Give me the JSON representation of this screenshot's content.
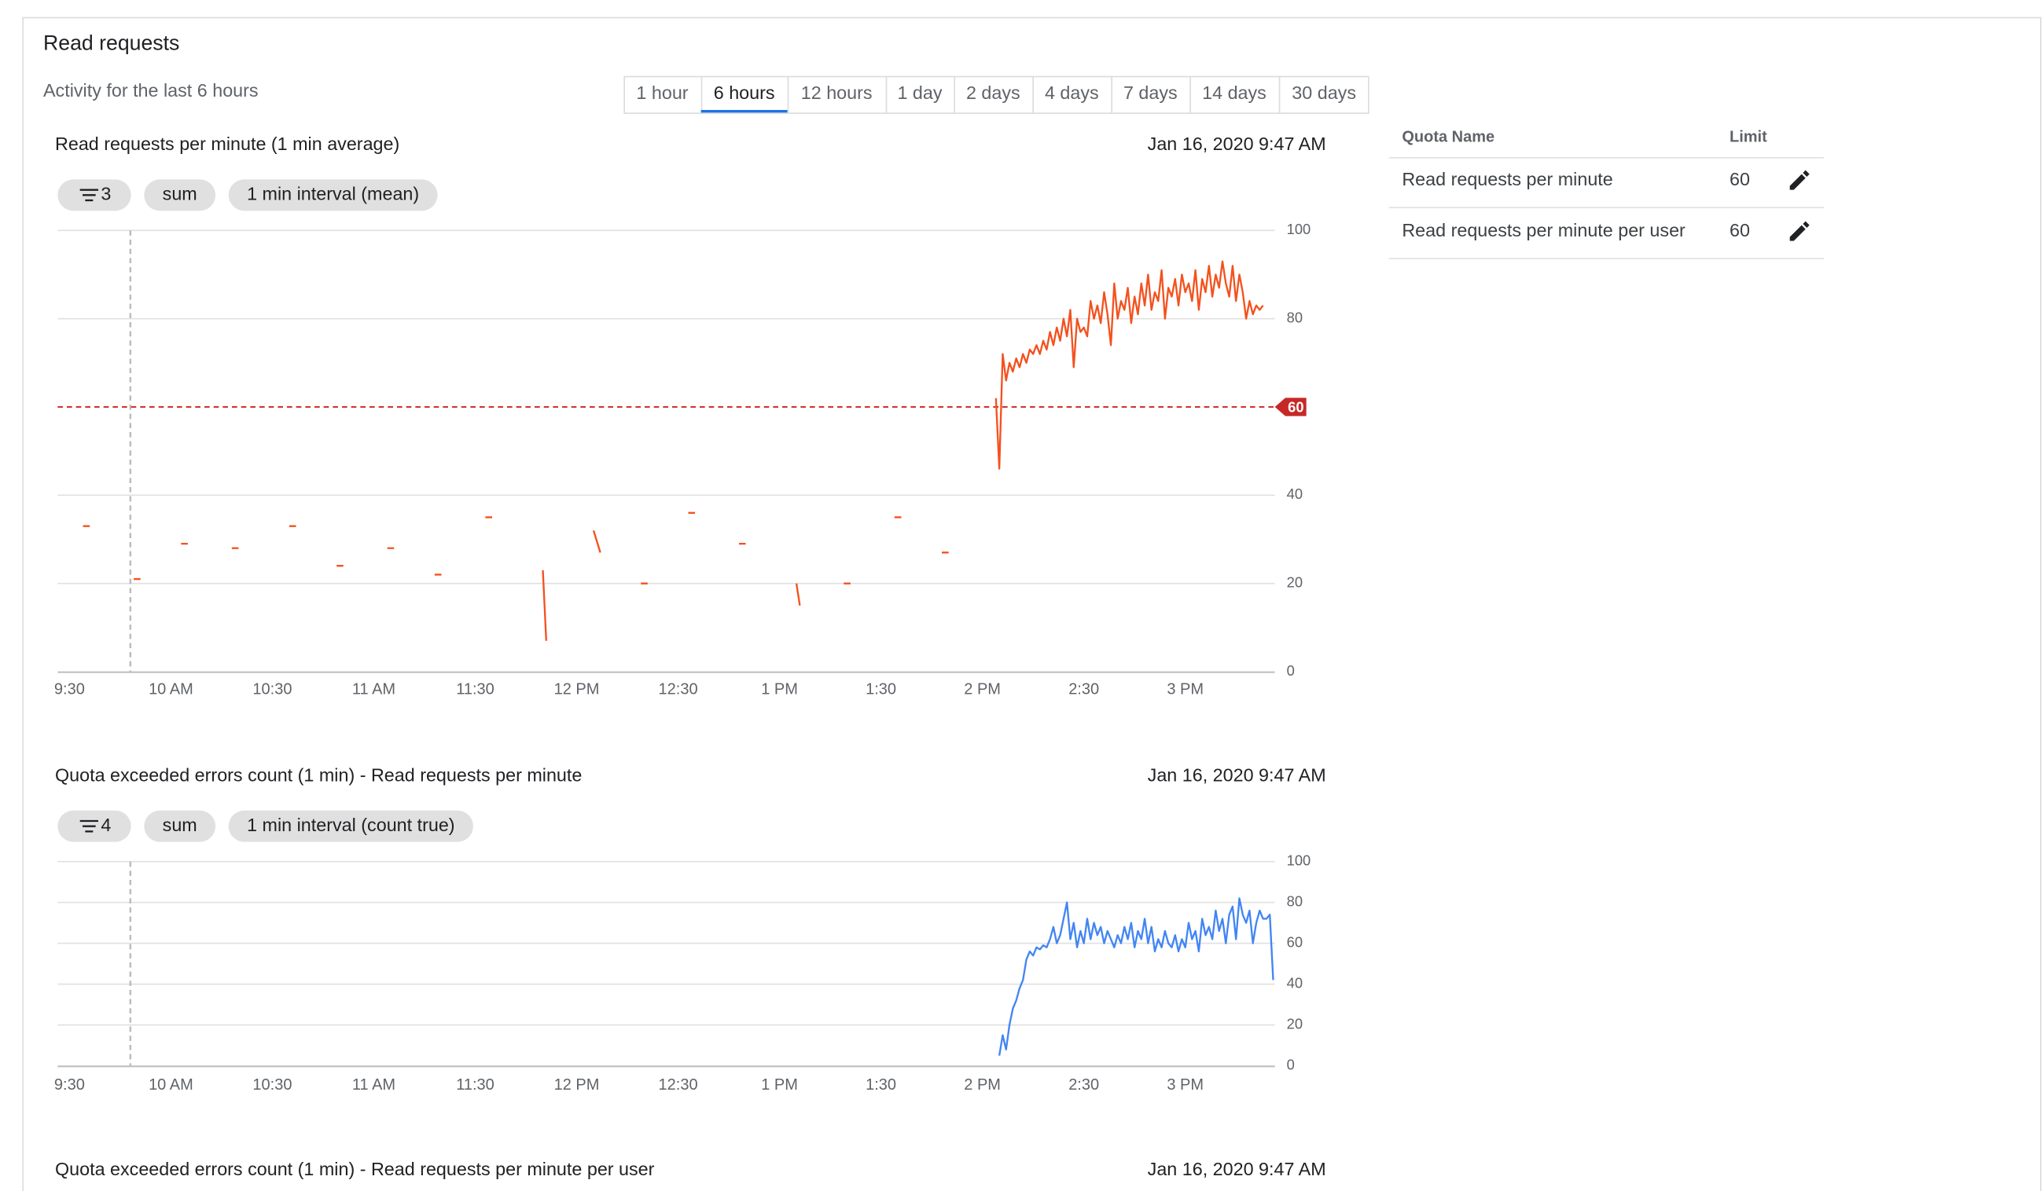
{
  "panel": {
    "title": "Read requests",
    "subtitle": "Activity for the last 6 hours",
    "tabs": [
      "1 hour",
      "6 hours",
      "12 hours",
      "1 day",
      "2 days",
      "4 days",
      "7 days",
      "14 days",
      "30 days"
    ],
    "selected_tab": 1
  },
  "chart_data": [
    {
      "type": "line",
      "title": "Read requests per minute (1 min average)",
      "timestamp": "Jan 16, 2020 9:47 AM",
      "filter_count": 3,
      "chips": [
        "sum",
        "1 min interval (mean)"
      ],
      "xlim": [
        566.5,
        926.5
      ],
      "xticks": [
        {
          "value": 570,
          "label": "9:30"
        },
        {
          "value": 600,
          "label": "10 AM"
        },
        {
          "value": 630,
          "label": "10:30"
        },
        {
          "value": 660,
          "label": "11 AM"
        },
        {
          "value": 690,
          "label": "11:30"
        },
        {
          "value": 720,
          "label": "12 PM"
        },
        {
          "value": 750,
          "label": "12:30"
        },
        {
          "value": 780,
          "label": "1 PM"
        },
        {
          "value": 810,
          "label": "1:30"
        },
        {
          "value": 840,
          "label": "2 PM"
        },
        {
          "value": 870,
          "label": "2:30"
        },
        {
          "value": 900,
          "label": "3 PM"
        }
      ],
      "ylim": [
        0,
        100
      ],
      "yticks": [
        0,
        20,
        40,
        80,
        100
      ],
      "grid": true,
      "threshold": 60,
      "series": [
        {
          "color": "#f4511e",
          "x": [
            574,
            576,
            null,
            589,
            591,
            null,
            603,
            605,
            null,
            618,
            620,
            null,
            635,
            637,
            null,
            649,
            651,
            null,
            664,
            666,
            null,
            678,
            680,
            null,
            693,
            695,
            null,
            710,
            711,
            null,
            725,
            727,
            null,
            739,
            741,
            null,
            753,
            755,
            null,
            768,
            770,
            null,
            785,
            786,
            null,
            799,
            801,
            null,
            814,
            816,
            null,
            828,
            830,
            null,
            844,
            845,
            846,
            847,
            848,
            849,
            850,
            851,
            852,
            853,
            854,
            855,
            856,
            857,
            858,
            859,
            860,
            861,
            862,
            863,
            864,
            865,
            866,
            867,
            868,
            869,
            870,
            871,
            872,
            873,
            874,
            875,
            876,
            877,
            878,
            879,
            880,
            881,
            882,
            883,
            884,
            885,
            886,
            887,
            888,
            889,
            890,
            891,
            892,
            893,
            894,
            895,
            896,
            897,
            898,
            899,
            900,
            901,
            902,
            903,
            904,
            905,
            906,
            907,
            908,
            909,
            910,
            911,
            912,
            913,
            914,
            915,
            916,
            917,
            918,
            919,
            920,
            921,
            922,
            923
          ],
          "values": [
            33,
            33,
            null,
            21,
            21,
            null,
            29,
            29,
            null,
            28,
            28,
            null,
            33,
            33,
            null,
            24,
            24,
            null,
            28,
            28,
            null,
            22,
            22,
            null,
            35,
            35,
            null,
            23,
            7,
            null,
            32,
            27,
            null,
            20,
            20,
            null,
            36,
            36,
            null,
            29,
            29,
            null,
            20,
            15,
            null,
            20,
            20,
            null,
            35,
            35,
            null,
            27,
            27,
            null,
            62,
            46,
            72,
            66,
            70,
            68,
            71,
            69,
            72,
            70,
            73,
            72,
            74,
            72,
            75,
            73,
            77,
            74,
            78,
            75,
            80,
            76,
            82,
            69,
            80,
            77,
            78,
            76,
            84,
            80,
            83,
            79,
            86,
            81,
            74,
            88,
            80,
            84,
            82,
            87,
            79,
            85,
            81,
            88,
            83,
            90,
            82,
            86,
            84,
            91,
            80,
            87,
            85,
            89,
            83,
            90,
            86,
            88,
            84,
            91,
            82,
            89,
            86,
            92,
            85,
            90,
            87,
            93,
            88,
            85,
            92,
            84,
            90,
            86,
            80,
            84,
            81,
            83,
            82,
            83
          ]
        }
      ]
    },
    {
      "type": "line",
      "title": "Quota exceeded errors count (1 min) - Read requests per minute",
      "timestamp": "Jan 16, 2020 9:47 AM",
      "filter_count": 4,
      "chips": [
        "sum",
        "1 min interval (count true)"
      ],
      "xlim": [
        566.5,
        926.5
      ],
      "xticks": [
        {
          "value": 570,
          "label": "9:30"
        },
        {
          "value": 600,
          "label": "10 AM"
        },
        {
          "value": 630,
          "label": "10:30"
        },
        {
          "value": 660,
          "label": "11 AM"
        },
        {
          "value": 690,
          "label": "11:30"
        },
        {
          "value": 720,
          "label": "12 PM"
        },
        {
          "value": 750,
          "label": "12:30"
        },
        {
          "value": 780,
          "label": "1 PM"
        },
        {
          "value": 810,
          "label": "1:30"
        },
        {
          "value": 840,
          "label": "2 PM"
        },
        {
          "value": 870,
          "label": "2:30"
        },
        {
          "value": 900,
          "label": "3 PM"
        }
      ],
      "ylim": [
        0,
        100
      ],
      "yticks": [
        0,
        20,
        40,
        60,
        80,
        100
      ],
      "grid": true,
      "series": [
        {
          "color": "#4285f4",
          "x": [
            845,
            846,
            847,
            848,
            849,
            850,
            851,
            852,
            853,
            854,
            855,
            856,
            857,
            858,
            859,
            860,
            861,
            862,
            863,
            864,
            865,
            866,
            867,
            868,
            869,
            870,
            871,
            872,
            873,
            874,
            875,
            876,
            877,
            878,
            879,
            880,
            881,
            882,
            883,
            884,
            885,
            886,
            887,
            888,
            889,
            890,
            891,
            892,
            893,
            894,
            895,
            896,
            897,
            898,
            899,
            900,
            901,
            902,
            903,
            904,
            905,
            906,
            907,
            908,
            909,
            910,
            911,
            912,
            913,
            914,
            915,
            916,
            917,
            918,
            919,
            920,
            921,
            922,
            923,
            924,
            925,
            926
          ],
          "values": [
            5,
            15,
            8,
            20,
            28,
            32,
            38,
            42,
            52,
            56,
            54,
            58,
            57,
            59,
            58,
            62,
            68,
            60,
            64,
            72,
            80,
            62,
            70,
            58,
            66,
            60,
            72,
            62,
            70,
            64,
            68,
            60,
            66,
            62,
            58,
            64,
            60,
            68,
            62,
            70,
            58,
            66,
            62,
            72,
            60,
            68,
            56,
            62,
            58,
            66,
            60,
            58,
            64,
            56,
            62,
            58,
            70,
            62,
            66,
            56,
            72,
            64,
            68,
            62,
            76,
            66,
            72,
            60,
            74,
            78,
            62,
            82,
            74,
            70,
            76,
            60,
            70,
            76,
            72,
            72,
            74,
            42
          ]
        }
      ]
    },
    {
      "type": "line",
      "title": "Quota exceeded errors count (1 min) - Read requests per minute per user",
      "timestamp": "Jan 16, 2020 9:47 AM"
    }
  ],
  "quota_table": {
    "headers": [
      "Quota Name",
      "Limit"
    ],
    "rows": [
      [
        "Read requests per minute",
        60
      ],
      [
        "Read requests per minute per user",
        60
      ]
    ]
  }
}
